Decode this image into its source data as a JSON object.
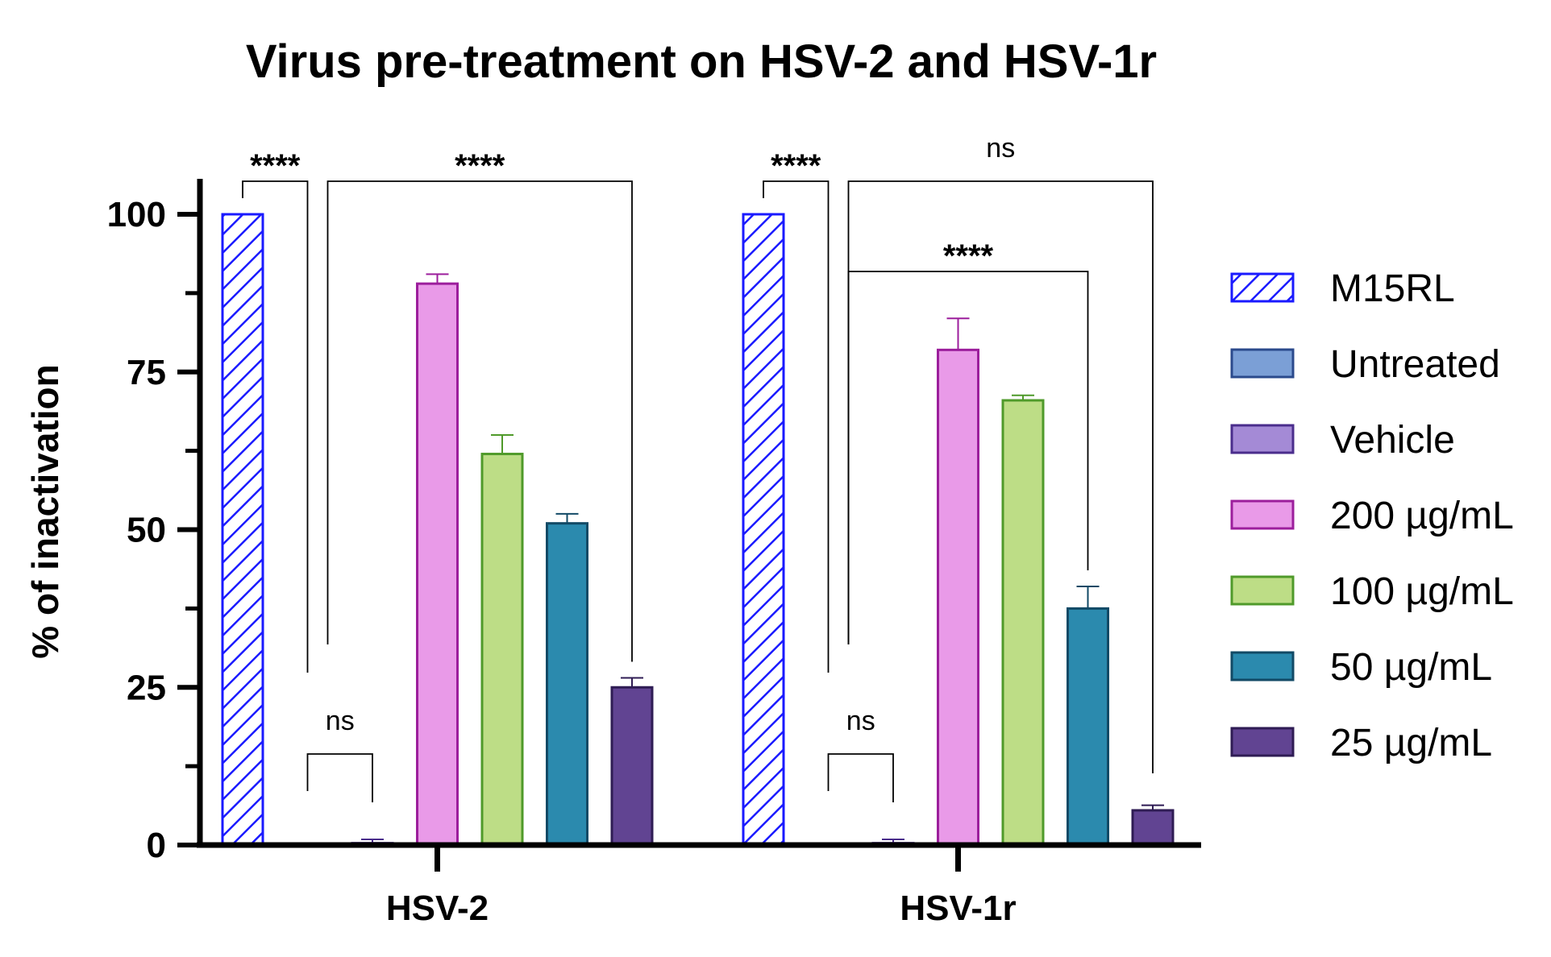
{
  "chart_data": {
    "type": "bar",
    "title": "Virus pre-treatment on HSV-2 and HSV-1r",
    "xlabel": "",
    "ylabel": "% of inactivation",
    "ylim": [
      0,
      100
    ],
    "yticks": [
      0,
      25,
      50,
      75,
      100
    ],
    "ytick_labels": [
      "0",
      "25",
      "50",
      "75",
      "100"
    ],
    "categories": [
      "HSV-2",
      "HSV-1r"
    ],
    "legend_position": "right",
    "series": [
      {
        "name": "M15RL",
        "fill": "#ffffff",
        "stroke": "#1a1aff",
        "hatch": true,
        "values": [
          100,
          100
        ],
        "errors": [
          0,
          0
        ]
      },
      {
        "name": "Untreated",
        "fill": "#7b9fd6",
        "stroke": "#2b4a8c",
        "hatch": false,
        "values": [
          0,
          0
        ],
        "errors": [
          0,
          0
        ]
      },
      {
        "name": "Vehicle",
        "fill": "#a48ad6",
        "stroke": "#4a2d8c",
        "hatch": false,
        "values": [
          0.3,
          0.3
        ],
        "errors": [
          0.6,
          0.6
        ]
      },
      {
        "name": "200 µg/mL",
        "fill": "#e99ae8",
        "stroke": "#9c1e9c",
        "hatch": false,
        "values": [
          89,
          78.5
        ],
        "errors": [
          1.5,
          5
        ]
      },
      {
        "name": "100 µg/mL",
        "fill": "#bddd86",
        "stroke": "#4f9a2a",
        "hatch": false,
        "values": [
          62,
          70.5
        ],
        "errors": [
          3,
          0.8
        ]
      },
      {
        "name": "50 µg/mL",
        "fill": "#2b8aae",
        "stroke": "#124a66",
        "hatch": false,
        "values": [
          51,
          37.5
        ],
        "errors": [
          1.5,
          3.5
        ]
      },
      {
        "name": "25 µg/mL",
        "fill": "#614492",
        "stroke": "#2f1c54",
        "hatch": false,
        "values": [
          25,
          5.5
        ],
        "errors": [
          1.5,
          0.8
        ]
      }
    ],
    "significance": [
      {
        "group": 0,
        "from": 0,
        "to": 1,
        "label": "****",
        "level": 1
      },
      {
        "group": 0,
        "from": 1,
        "to": 2,
        "label": "ns",
        "level": 0
      },
      {
        "group": 0,
        "from": 1,
        "to": 6,
        "label": "****",
        "level": 1
      },
      {
        "group": 1,
        "from": 0,
        "to": 1,
        "label": "****",
        "level": 1
      },
      {
        "group": 1,
        "from": 1,
        "to": 2,
        "label": "ns",
        "level": 0
      },
      {
        "group": 1,
        "from": 1,
        "to": 5,
        "label": "****",
        "level": 2
      },
      {
        "group": 1,
        "from": 1,
        "to": 6,
        "label": "ns",
        "level": 1
      }
    ]
  }
}
